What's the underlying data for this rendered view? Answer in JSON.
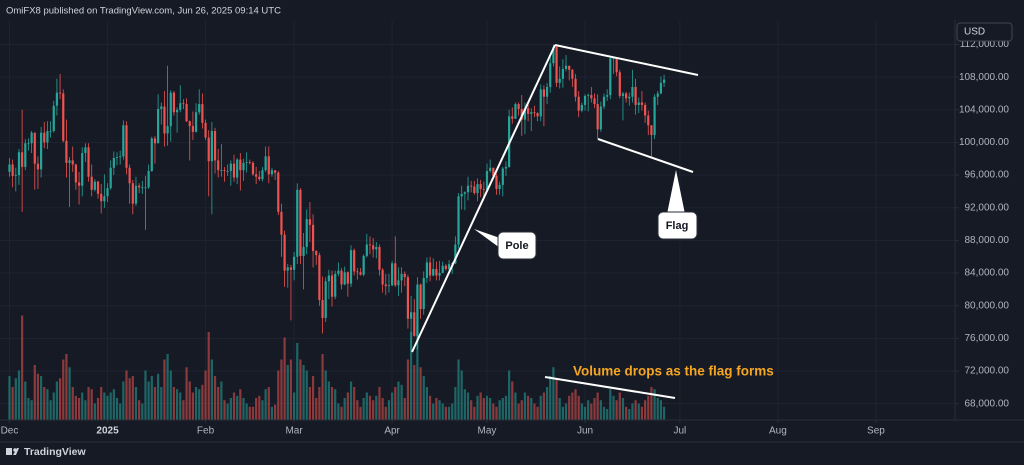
{
  "chart_data": {
    "type": "candlestick",
    "source": "OmiFX8 published on TradingView.com, Jun 26, 2025 09:14 UTC",
    "currency_label": "USD",
    "annotations": {
      "pole": "Pole",
      "flag": "Flag",
      "volume_note": "Volume drops as the flag forms"
    },
    "up_color": "#26a69a",
    "down_color": "#ef5350",
    "grid": true,
    "xlim": [
      -3,
      299
    ],
    "xticks": [
      {
        "value": 0,
        "label": "Dec"
      },
      {
        "value": 31,
        "label": "2025"
      },
      {
        "value": 62,
        "label": "Feb"
      },
      {
        "value": 90,
        "label": "Mar"
      },
      {
        "value": 121,
        "label": "Apr"
      },
      {
        "value": 151,
        "label": "May"
      },
      {
        "value": 182,
        "label": "Jun"
      },
      {
        "value": 212,
        "label": "Jul"
      },
      {
        "value": 243,
        "label": "Aug"
      },
      {
        "value": 274,
        "label": "Sep"
      }
    ],
    "ylim": [
      66000,
      115000
    ],
    "yticks": [
      {
        "value": 68000,
        "label": "68,000.00"
      },
      {
        "value": 72000,
        "label": "72,000.00"
      },
      {
        "value": 76000,
        "label": "76,000.00"
      },
      {
        "value": 80000,
        "label": "80,000.00"
      },
      {
        "value": 84000,
        "label": "84,000.00"
      },
      {
        "value": 88000,
        "label": "88,000.00"
      },
      {
        "value": 92000,
        "label": "92,000.00"
      },
      {
        "value": 96000,
        "label": "96,000.00"
      },
      {
        "value": 100000,
        "label": "100,000.00"
      },
      {
        "value": 104000,
        "label": "104,000.00"
      },
      {
        "value": 108000,
        "label": "108,000.00"
      },
      {
        "value": 112000,
        "label": "112,000.00"
      }
    ],
    "volume_lim": [
      0,
      100
    ],
    "open": [
      96400,
      97300,
      95900,
      96000,
      98800,
      97000,
      99900,
      99900,
      101200,
      97400,
      96700,
      101200,
      100000,
      101400,
      101400,
      104500,
      106100,
      106000,
      100200,
      97500,
      97800,
      97300,
      95100,
      94700,
      98700,
      99400,
      95800,
      94200,
      95200,
      93700,
      92800,
      93400,
      94400,
      96900,
      98100,
      98200,
      98300,
      102100,
      96900,
      95000,
      92500,
      94700,
      94500,
      94500,
      94500,
      96500,
      100500,
      99900,
      104100,
      104400,
      101100,
      102000,
      106100,
      103700,
      104000,
      104800,
      104700,
      102600,
      102000,
      101300,
      103700,
      104700,
      102400,
      100600,
      97700,
      101400,
      97800,
      96600,
      96600,
      96500,
      96500,
      97400,
      95700,
      97900,
      96600,
      97500,
      97600,
      97500,
      96100,
      95800,
      95500,
      96600,
      98300,
      96100,
      96600,
      96300,
      91500,
      88700,
      84300,
      84700,
      84400,
      86000,
      94200,
      86100,
      87200,
      90600,
      89900,
      86700,
      86200,
      80700,
      78500,
      83000,
      83700,
      81100,
      83900,
      84300,
      82600,
      84100,
      82700,
      86800,
      84200,
      84100,
      83800,
      86100,
      87500,
      87400,
      86900,
      87200,
      84400,
      82600,
      82400,
      82500,
      85200,
      82500,
      83100,
      83900,
      83500,
      78400,
      79200,
      76300,
      82600,
      79600,
      83400,
      85300,
      83700,
      84500,
      83700,
      84000,
      84900,
      84500,
      85100,
      85200,
      87500,
      93400,
      93700,
      93900,
      94700,
      94600,
      93800,
      94900,
      94300,
      94200,
      96500,
      96900,
      95900,
      94300,
      94800,
      96800,
      97000,
      103200,
      102900,
      104700,
      104100,
      102800,
      104200,
      103500,
      103700,
      103600,
      103200,
      106500,
      105600,
      106800,
      109700,
      111700,
      107300,
      107800,
      109000,
      109400,
      108900,
      107800,
      105600,
      103900,
      104600,
      105700,
      105800,
      105400,
      104700,
      101600,
      104400,
      105600,
      105800,
      110300,
      110300,
      108600,
      105700,
      106000,
      105400,
      105600,
      106800,
      104600,
      104900,
      104600,
      103300,
      102100,
      100900,
      105600,
      106000,
      107300
    ],
    "high": [
      98100,
      97900,
      96900,
      99200,
      104000,
      100400,
      100500,
      101400,
      101200,
      98300,
      101900,
      102500,
      102600,
      102600,
      105100,
      107800,
      108400,
      106500,
      102800,
      98200,
      99500,
      97400,
      96400,
      99400,
      99900,
      99900,
      97300,
      95500,
      95300,
      94900,
      96100,
      95000,
      97800,
      98900,
      98800,
      99000,
      102700,
      102600,
      97300,
      95400,
      95800,
      95000,
      95300,
      95900,
      97300,
      100700,
      100800,
      105900,
      104900,
      106300,
      109400,
      106400,
      106300,
      104300,
      107000,
      105300,
      105400,
      102700,
      103800,
      104800,
      106500,
      106000,
      102800,
      101500,
      102500,
      101800,
      99200,
      99800,
      97000,
      97300,
      97800,
      98500,
      98100,
      98700,
      98000,
      98800,
      97900,
      97700,
      97000,
      96500,
      97000,
      99500,
      99500,
      96900,
      96500,
      96500,
      92500,
      89200,
      85100,
      85000,
      86600,
      95000,
      94400,
      88900,
      91800,
      92700,
      91200,
      86800,
      86500,
      83600,
      83500,
      84400,
      84300,
      84300,
      85300,
      84600,
      84800,
      84200,
      87400,
      87000,
      84600,
      84600,
      86300,
      88800,
      88500,
      88300,
      87800,
      87500,
      84600,
      83900,
      83900,
      85500,
      88500,
      84700,
      84700,
      84200,
      83800,
      81200,
      80800,
      83500,
      82700,
      84200,
      85900,
      86000,
      85800,
      85400,
      85500,
      85400,
      85100,
      85600,
      85300,
      88500,
      93800,
      94700,
      94000,
      95800,
      95300,
      95300,
      95600,
      95400,
      95200,
      97400,
      97900,
      96900,
      96200,
      95200,
      97000,
      97700,
      104000,
      104300,
      104900,
      104900,
      105800,
      104900,
      104800,
      104200,
      104500,
      103700,
      107100,
      107000,
      107300,
      110800,
      112000,
      111800,
      109300,
      110200,
      110700,
      109300,
      109000,
      108400,
      106300,
      104900,
      105900,
      106000,
      106800,
      106000,
      105900,
      105000,
      106000,
      106500,
      110500,
      110400,
      110400,
      108900,
      106200,
      106200,
      106100,
      108900,
      107800,
      105500,
      106300,
      104900,
      103900,
      102100,
      105900,
      106300,
      108100,
      108300
    ],
    "low": [
      95800,
      94500,
      94000,
      94800,
      91500,
      96600,
      99000,
      98700,
      94200,
      94300,
      95700,
      99300,
      99200,
      100600,
      101200,
      103300,
      105300,
      100000,
      95700,
      92100,
      96400,
      94200,
      92400,
      93400,
      97600,
      95200,
      93400,
      94000,
      93100,
      91300,
      92000,
      92700,
      94200,
      96000,
      97200,
      97300,
      97900,
      96100,
      92500,
      91200,
      92200,
      93800,
      93700,
      89300,
      94300,
      96400,
      97400,
      99900,
      102200,
      99500,
      99600,
      100100,
      103300,
      101200,
      103700,
      104100,
      102500,
      97800,
      100300,
      101200,
      103400,
      101700,
      100300,
      93400,
      91200,
      96200,
      95700,
      95800,
      95200,
      95900,
      94700,
      95200,
      94900,
      94100,
      95300,
      96300,
      97300,
      95900,
      94900,
      95300,
      95200,
      96400,
      95000,
      95800,
      95400,
      91100,
      86000,
      82300,
      82200,
      78200,
      83100,
      85100,
      85100,
      82000,
      86300,
      87800,
      84700,
      85000,
      80000,
      76600,
      78000,
      80800,
      79900,
      80800,
      83600,
      82000,
      82500,
      81100,
      82300,
      83700,
      83200,
      83700,
      83600,
      85900,
      86300,
      85900,
      85800,
      83700,
      81600,
      81300,
      81600,
      82400,
      82300,
      81200,
      81600,
      82400,
      77200,
      74500,
      76200,
      74600,
      78400,
      78900,
      82800,
      83000,
      83600,
      83100,
      83100,
      84000,
      84300,
      84300,
      83900,
      85100,
      87000,
      91800,
      91700,
      92900,
      93900,
      93600,
      92800,
      93300,
      92900,
      93900,
      96300,
      95700,
      93600,
      93600,
      93400,
      95900,
      96900,
      102300,
      102900,
      103300,
      100800,
      101000,
      102600,
      101400,
      103100,
      102600,
      102600,
      102000,
      104700,
      106100,
      109300,
      106800,
      106600,
      106700,
      108700,
      107600,
      106800,
      105000,
      103100,
      103700,
      103900,
      103800,
      104900,
      104200,
      100400,
      101300,
      104100,
      105100,
      105300,
      108400,
      108100,
      105400,
      102700,
      104900,
      104500,
      104900,
      103400,
      103600,
      103900,
      102400,
      100900,
      98200,
      100400,
      104600,
      105900,
      106800
    ],
    "close": [
      97300,
      95900,
      96000,
      98800,
      97000,
      99900,
      99900,
      101200,
      97400,
      96700,
      101200,
      100000,
      101400,
      101400,
      104500,
      106100,
      106000,
      100200,
      97500,
      97800,
      97300,
      95100,
      94700,
      98700,
      99400,
      95800,
      94200,
      95200,
      93700,
      92800,
      93400,
      94400,
      96900,
      98100,
      98200,
      98300,
      102100,
      96900,
      95000,
      92500,
      94700,
      94500,
      94500,
      94500,
      96500,
      100500,
      99900,
      104100,
      104400,
      101100,
      102000,
      106100,
      103700,
      104000,
      104800,
      104700,
      102600,
      102000,
      101300,
      103700,
      104700,
      102400,
      100600,
      97700,
      101400,
      97800,
      96600,
      96600,
      96500,
      96500,
      97400,
      95700,
      97900,
      96600,
      97500,
      97600,
      97500,
      96100,
      95800,
      95500,
      96600,
      98300,
      96100,
      96600,
      96300,
      91500,
      88700,
      84300,
      84700,
      84400,
      86000,
      94200,
      86100,
      87200,
      90600,
      89900,
      86700,
      86200,
      80700,
      78500,
      83000,
      83700,
      81100,
      83900,
      84300,
      82600,
      84100,
      82700,
      86800,
      84200,
      84100,
      83800,
      86100,
      87500,
      87400,
      86900,
      87200,
      84400,
      82600,
      82400,
      82500,
      85200,
      82500,
      83100,
      83900,
      83500,
      78400,
      79200,
      76300,
      82600,
      79600,
      83400,
      85300,
      83700,
      84500,
      83700,
      84000,
      84900,
      84500,
      85100,
      85200,
      87500,
      93400,
      93700,
      93900,
      94700,
      94600,
      93800,
      94900,
      94300,
      94200,
      96500,
      96900,
      95900,
      94300,
      94800,
      96800,
      97000,
      103200,
      102900,
      104700,
      104100,
      102800,
      104200,
      103500,
      103700,
      103600,
      103200,
      106500,
      105600,
      106800,
      109700,
      111700,
      107300,
      107800,
      109000,
      109400,
      108900,
      107800,
      105600,
      103900,
      104600,
      105700,
      105800,
      105400,
      104700,
      101600,
      104400,
      105600,
      105800,
      110300,
      110300,
      108600,
      105700,
      106000,
      105400,
      105600,
      106800,
      104600,
      104900,
      104600,
      103300,
      102100,
      100900,
      105600,
      106000,
      107300,
      107700
    ],
    "volume": [
      40,
      30,
      38,
      45,
      95,
      35,
      20,
      18,
      50,
      42,
      40,
      30,
      28,
      18,
      25,
      35,
      38,
      55,
      60,
      48,
      30,
      22,
      20,
      25,
      18,
      30,
      28,
      15,
      20,
      30,
      25,
      22,
      25,
      28,
      20,
      15,
      35,
      45,
      38,
      40,
      30,
      18,
      15,
      45,
      35,
      40,
      30,
      42,
      30,
      55,
      60,
      45,
      30,
      28,
      25,
      18,
      48,
      35,
      25,
      30,
      28,
      32,
      45,
      80,
      55,
      40,
      30,
      35,
      18,
      15,
      20,
      25,
      22,
      28,
      20,
      15,
      12,
      12,
      20,
      22,
      18,
      28,
      30,
      12,
      14,
      45,
      55,
      75,
      50,
      55,
      25,
      70,
      55,
      50,
      45,
      30,
      40,
      20,
      30,
      60,
      45,
      35,
      30,
      28,
      15,
      12,
      20,
      25,
      35,
      30,
      18,
      12,
      20,
      25,
      22,
      18,
      22,
      30,
      20,
      12,
      18,
      25,
      30,
      35,
      32,
      20,
      55,
      80,
      50,
      85,
      48,
      40,
      30,
      22,
      15,
      20,
      18,
      15,
      12,
      12,
      15,
      30,
      55,
      45,
      28,
      25,
      18,
      12,
      22,
      25,
      20,
      22,
      20,
      15,
      12,
      18,
      20,
      22,
      45,
      35,
      25,
      15,
      18,
      25,
      22,
      20,
      15,
      12,
      22,
      25,
      30,
      40,
      48,
      38,
      20,
      12,
      15,
      22,
      25,
      28,
      22,
      15,
      12,
      18,
      15,
      20,
      25,
      18,
      12,
      10,
      28,
      22,
      18,
      25,
      20,
      12,
      10,
      15,
      18,
      15,
      12,
      18,
      22,
      30,
      28,
      20,
      18,
      12
    ]
  },
  "footer": "TradingView"
}
